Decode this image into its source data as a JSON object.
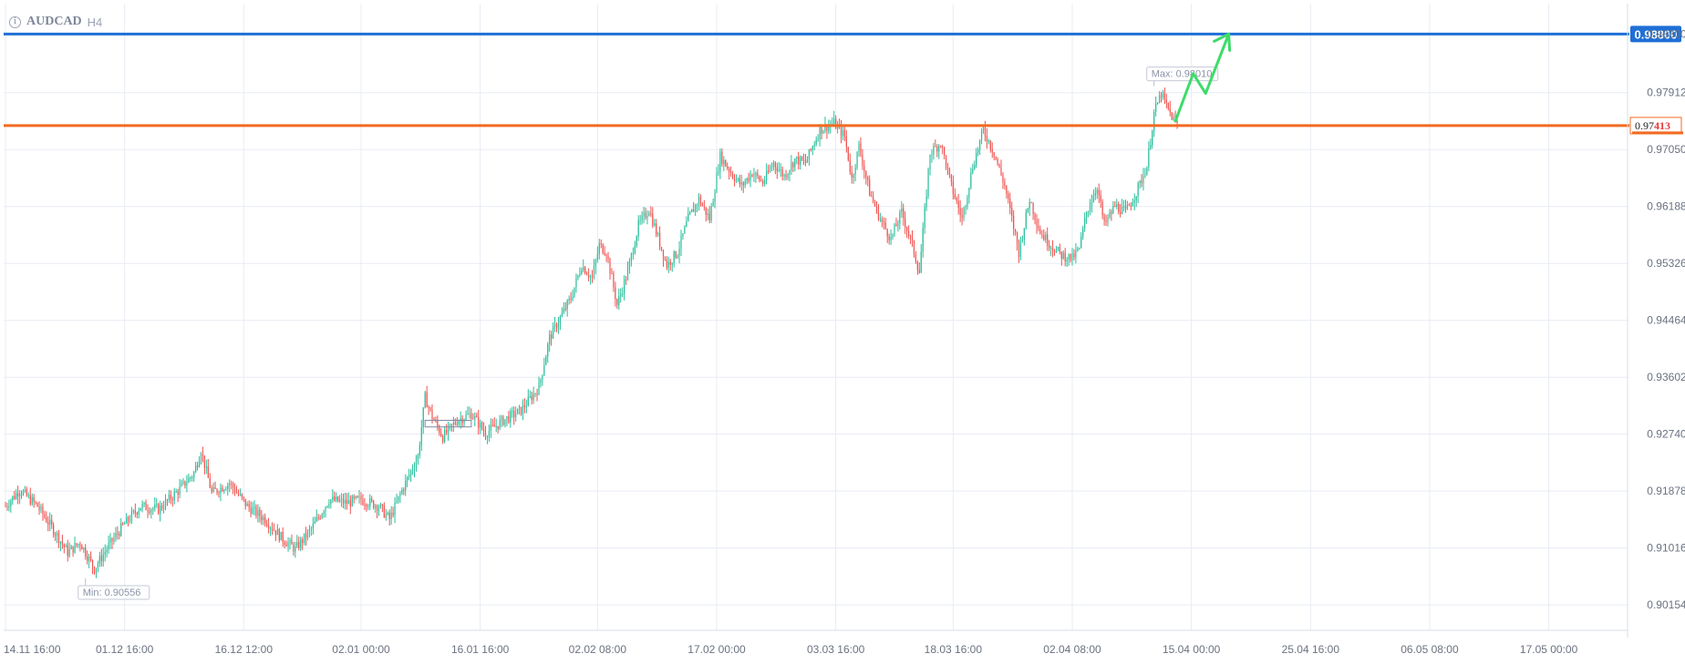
{
  "header": {
    "symbol": "AUDCAD",
    "timeframe": "H4",
    "info_icon": "info-circle-icon"
  },
  "colors": {
    "up": "#2bbd9b",
    "down": "#ef5350",
    "resistance_line": "#1f6fd6",
    "price_line": "#f26a21",
    "arrow": "#3ddc6a",
    "grid": "#e8ecf3",
    "axis_text": "#6b7280"
  },
  "chart_data": {
    "type": "candlestick",
    "symbol": "AUDCAD",
    "timeframe": "H4",
    "ylim": [
      0.8977,
      0.9926
    ],
    "y_ticks": [
      "0.98800",
      "0.97912",
      "0.97050",
      "0.96188",
      "0.95326",
      "0.94464",
      "0.93602",
      "0.92740",
      "0.91878",
      "0.91016",
      "0.90154"
    ],
    "x_ticks": [
      "14.11 16:00",
      "01.12 16:00",
      "16.12 12:00",
      "02.01 00:00",
      "16.01 16:00",
      "02.02 08:00",
      "17.02 00:00",
      "03.03 16:00",
      "18.03 16:00",
      "02.04 08:00",
      "15.04 00:00",
      "25.04 16:00",
      "06.05 08:00",
      "17.05 00:00"
    ],
    "grid": true,
    "price_path": [
      [
        0,
        0.9165
      ],
      [
        8,
        0.919
      ],
      [
        18,
        0.9165
      ],
      [
        28,
        0.9125
      ],
      [
        35,
        0.9095
      ],
      [
        42,
        0.911
      ],
      [
        50,
        0.907
      ],
      [
        58,
        0.9105
      ],
      [
        66,
        0.9135
      ],
      [
        76,
        0.9165
      ],
      [
        86,
        0.916
      ],
      [
        96,
        0.9185
      ],
      [
        106,
        0.9215
      ],
      [
        110,
        0.925
      ],
      [
        116,
        0.9185
      ],
      [
        126,
        0.92
      ],
      [
        136,
        0.9165
      ],
      [
        146,
        0.9145
      ],
      [
        156,
        0.9115
      ],
      [
        163,
        0.91
      ],
      [
        172,
        0.913
      ],
      [
        182,
        0.9175
      ],
      [
        192,
        0.917
      ],
      [
        200,
        0.9175
      ],
      [
        210,
        0.9165
      ],
      [
        216,
        0.9145
      ],
      [
        224,
        0.9195
      ],
      [
        232,
        0.924
      ],
      [
        236,
        0.933
      ],
      [
        240,
        0.93
      ],
      [
        246,
        0.927
      ],
      [
        254,
        0.9295
      ],
      [
        262,
        0.9305
      ],
      [
        270,
        0.9275
      ],
      [
        280,
        0.9295
      ],
      [
        290,
        0.931
      ],
      [
        300,
        0.9345
      ],
      [
        306,
        0.942
      ],
      [
        312,
        0.945
      ],
      [
        318,
        0.948
      ],
      [
        324,
        0.953
      ],
      [
        330,
        0.951
      ],
      [
        334,
        0.956
      ],
      [
        338,
        0.955
      ],
      [
        344,
        0.947
      ],
      [
        350,
        0.952
      ],
      [
        356,
        0.959
      ],
      [
        362,
        0.9615
      ],
      [
        366,
        0.958
      ],
      [
        372,
        0.953
      ],
      [
        378,
        0.955
      ],
      [
        384,
        0.96
      ],
      [
        390,
        0.963
      ],
      [
        396,
        0.96
      ],
      [
        402,
        0.9695
      ],
      [
        408,
        0.967
      ],
      [
        414,
        0.965
      ],
      [
        420,
        0.967
      ],
      [
        426,
        0.9655
      ],
      [
        432,
        0.9685
      ],
      [
        438,
        0.9665
      ],
      [
        444,
        0.969
      ],
      [
        450,
        0.9685
      ],
      [
        458,
        0.9735
      ],
      [
        466,
        0.9745
      ],
      [
        472,
        0.9725
      ],
      [
        476,
        0.966
      ],
      [
        480,
        0.971
      ],
      [
        486,
        0.964
      ],
      [
        492,
        0.96
      ],
      [
        498,
        0.957
      ],
      [
        504,
        0.961
      ],
      [
        510,
        0.956
      ],
      [
        514,
        0.952
      ],
      [
        520,
        0.97
      ],
      [
        526,
        0.9715
      ],
      [
        532,
        0.965
      ],
      [
        538,
        0.96
      ],
      [
        544,
        0.968
      ],
      [
        550,
        0.9735
      ],
      [
        556,
        0.97
      ],
      [
        562,
        0.965
      ],
      [
        566,
        0.96
      ],
      [
        570,
        0.955
      ],
      [
        576,
        0.963
      ],
      [
        582,
        0.958
      ],
      [
        588,
        0.956
      ],
      [
        594,
        0.9545
      ],
      [
        600,
        0.954
      ],
      [
        604,
        0.9555
      ],
      [
        608,
        0.961
      ],
      [
        614,
        0.965
      ],
      [
        618,
        0.959
      ],
      [
        624,
        0.962
      ],
      [
        630,
        0.961
      ],
      [
        636,
        0.964
      ],
      [
        642,
        0.968
      ],
      [
        646,
        0.976
      ],
      [
        650,
        0.979
      ],
      [
        654,
        0.9765
      ],
      [
        658,
        0.9745
      ]
    ],
    "total_bars": 660,
    "x_tick_bar_index": [
      0,
      67,
      134,
      200,
      267,
      333,
      400,
      467,
      533,
      600,
      667,
      734,
      801,
      868
    ],
    "max_marker": {
      "label": "Max: 0.98010",
      "value": 0.9801,
      "bar_index": 646
    },
    "min_marker": {
      "label": "Min: 0.90556",
      "value": 0.90556,
      "bar_index": 45
    },
    "hlines": [
      {
        "name": "resistance",
        "value": 0.988,
        "label": "0.98800",
        "color": "#1f6fd6"
      },
      {
        "name": "current-price",
        "value": 0.97413,
        "label_main": "0.97",
        "label_tail": "413",
        "color": "#f26a21"
      }
    ],
    "forecast_arrow": [
      [
        658,
        0.9748
      ],
      [
        668,
        0.982
      ],
      [
        675,
        0.979
      ],
      [
        688,
        0.988
      ]
    ],
    "consolidation_box": {
      "from_bar": 236,
      "to_bar": 262,
      "value_top": 0.9295,
      "value_bottom": 0.9285
    }
  }
}
